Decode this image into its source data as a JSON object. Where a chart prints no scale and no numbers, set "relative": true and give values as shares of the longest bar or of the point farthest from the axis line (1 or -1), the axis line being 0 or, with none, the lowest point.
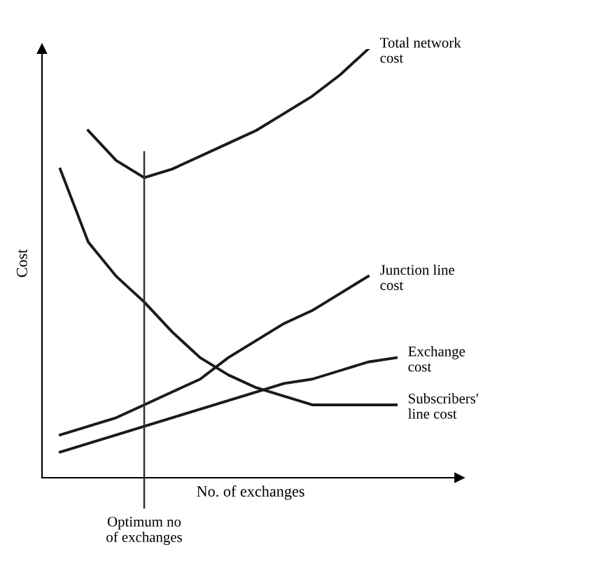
{
  "chart_data": {
    "type": "line",
    "relative": true,
    "xlabel": "No. of exchanges",
    "ylabel": "Cost",
    "categories": [
      null,
      null,
      null,
      null,
      null,
      null,
      null,
      null,
      null,
      null,
      null,
      null,
      null
    ],
    "series": [
      {
        "name": "Total network\ncost",
        "color": "#1a1a1a",
        "values": [
          null,
          0.81,
          0.74,
          0.7,
          0.72,
          0.75,
          0.78,
          0.81,
          0.85,
          0.89,
          0.94,
          1,
          null
        ]
      },
      {
        "name": "Junction line\ncost",
        "color": "#1a1a1a",
        "values": [
          0.1,
          0.12,
          0.14,
          0.17,
          0.2,
          0.23,
          0.28,
          0.32,
          0.36,
          0.39,
          0.43,
          0.47,
          null
        ]
      },
      {
        "name": "Exchange\ncost",
        "color": "#1a1a1a",
        "values": [
          0.06,
          0.08,
          0.1,
          0.12,
          0.14,
          0.16,
          0.18,
          0.2,
          0.22,
          0.23,
          0.25,
          0.27,
          0.28
        ]
      },
      {
        "name": "Subscribers'\nline cost",
        "color": "#1a1a1a",
        "values": [
          0.72,
          0.55,
          0.47,
          0.41,
          0.34,
          0.28,
          0.24,
          0.21,
          0.19,
          0.17,
          0.17,
          0.17,
          0.17
        ]
      }
    ],
    "annotations": [
      "Optimum no\nof exchanges"
    ],
    "legend": false,
    "marker": "none",
    "line_style": "solid",
    "tick_labels": false
  }
}
